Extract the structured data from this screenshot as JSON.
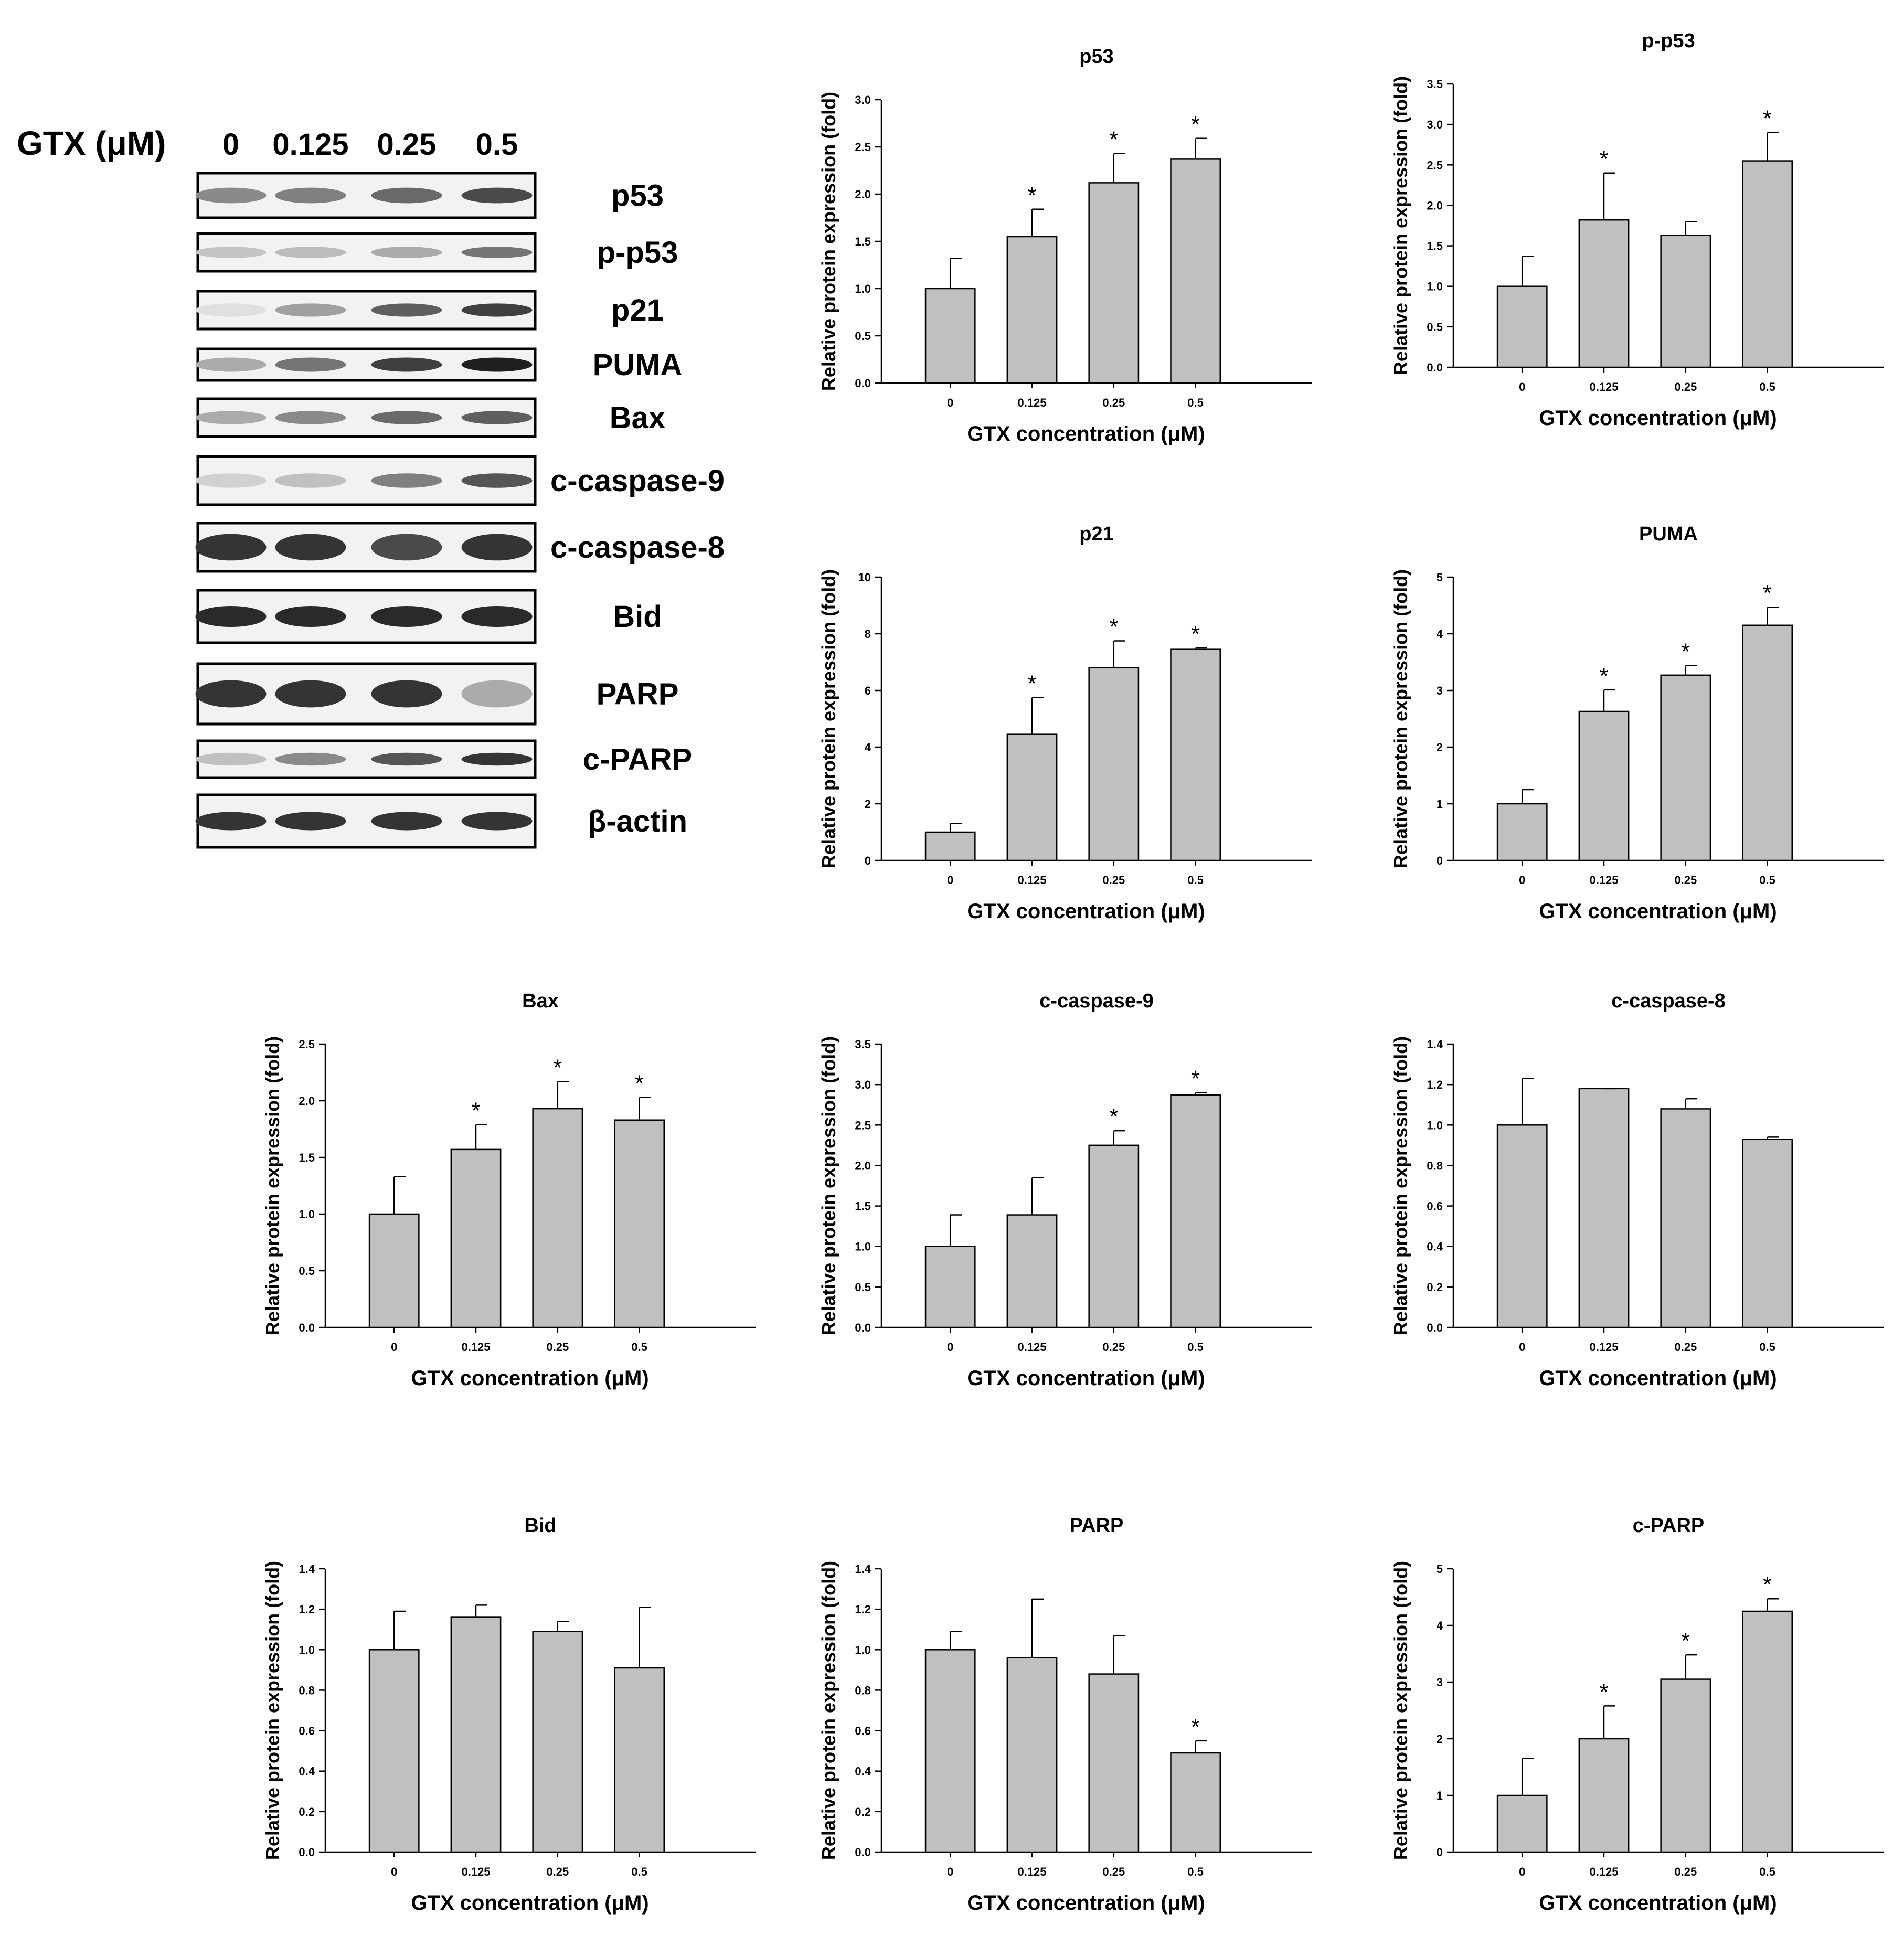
{
  "western_blot": {
    "treatment_label": "GTX (μM)",
    "lanes": [
      "0",
      "0.125",
      "0.25",
      "0.5"
    ],
    "bands": [
      "p53",
      "p-p53",
      "p21",
      "PUMA",
      "Bax",
      "c-caspase-9",
      "c-caspase-8",
      "Bid",
      "PARP",
      "c-PARP",
      "β-actin"
    ]
  },
  "chart_data": [
    {
      "type": "bar",
      "title": "p53",
      "xlabel": "GTX concentration (μM)",
      "ylabel": "Relative protein expression (fold)",
      "categories": [
        "0",
        "0.125",
        "0.25",
        "0.5"
      ],
      "values": [
        1.0,
        1.55,
        2.12,
        2.37
      ],
      "errors": [
        0.32,
        0.29,
        0.31,
        0.22
      ],
      "significant": [
        false,
        true,
        true,
        true
      ],
      "ylim": [
        0,
        3.0
      ],
      "yticks": [
        "0.0",
        "0.5",
        "1.0",
        "1.5",
        "2.0",
        "2.5",
        "3.0"
      ]
    },
    {
      "type": "bar",
      "title": "p-p53",
      "xlabel": "GTX concentration (μM)",
      "ylabel": "Relative protein expression (fold)",
      "categories": [
        "0",
        "0.125",
        "0.25",
        "0.5"
      ],
      "values": [
        1.0,
        1.82,
        1.63,
        2.55
      ],
      "errors": [
        0.37,
        0.58,
        0.17,
        0.35
      ],
      "significant": [
        false,
        true,
        false,
        true
      ],
      "ylim": [
        0,
        3.5
      ],
      "yticks": [
        "0.0",
        "0.5",
        "1.0",
        "1.5",
        "2.0",
        "2.5",
        "3.0",
        "3.5"
      ]
    },
    {
      "type": "bar",
      "title": "p21",
      "xlabel": "GTX concentration (μM)",
      "ylabel": "Relative protein expression (fold)",
      "categories": [
        "0",
        "0.125",
        "0.25",
        "0.5"
      ],
      "values": [
        1.0,
        4.45,
        6.8,
        7.45
      ],
      "errors": [
        0.3,
        1.3,
        0.95,
        0.05
      ],
      "significant": [
        false,
        true,
        true,
        true
      ],
      "ylim": [
        0,
        10
      ],
      "yticks": [
        "0",
        "2",
        "4",
        "6",
        "8",
        "10"
      ]
    },
    {
      "type": "bar",
      "title": "PUMA",
      "xlabel": "GTX concentration (μM)",
      "ylabel": "Relative protein expression (fold)",
      "categories": [
        "0",
        "0.125",
        "0.25",
        "0.5"
      ],
      "values": [
        1.0,
        2.63,
        3.27,
        4.15
      ],
      "errors": [
        0.25,
        0.38,
        0.17,
        0.32
      ],
      "significant": [
        false,
        true,
        true,
        true
      ],
      "ylim": [
        0,
        5
      ],
      "yticks": [
        "0",
        "1",
        "2",
        "3",
        "4",
        "5"
      ]
    },
    {
      "type": "bar",
      "title": "Bax",
      "xlabel": "GTX concentration (μM)",
      "ylabel": "Relative protein expression (fold)",
      "categories": [
        "0",
        "0.125",
        "0.25",
        "0.5"
      ],
      "values": [
        1.0,
        1.57,
        1.93,
        1.83
      ],
      "errors": [
        0.33,
        0.22,
        0.24,
        0.2
      ],
      "significant": [
        false,
        true,
        true,
        true
      ],
      "ylim": [
        0,
        2.5
      ],
      "yticks": [
        "0.0",
        "0.5",
        "1.0",
        "1.5",
        "2.0",
        "2.5"
      ]
    },
    {
      "type": "bar",
      "title": "c-caspase-9",
      "xlabel": "GTX concentration (μM)",
      "ylabel": "Relative protein expression (fold)",
      "categories": [
        "0",
        "0.125",
        "0.25",
        "0.5"
      ],
      "values": [
        1.0,
        1.39,
        2.25,
        2.87
      ],
      "errors": [
        0.39,
        0.46,
        0.18,
        0.03
      ],
      "significant": [
        false,
        false,
        true,
        true
      ],
      "ylim": [
        0,
        3.5
      ],
      "yticks": [
        "0.0",
        "0.5",
        "1.0",
        "1.5",
        "2.0",
        "2.5",
        "3.0",
        "3.5"
      ]
    },
    {
      "type": "bar",
      "title": "c-caspase-8",
      "xlabel": "GTX concentration (μM)",
      "ylabel": "Relative protein expression (fold)",
      "categories": [
        "0",
        "0.125",
        "0.25",
        "0.5"
      ],
      "values": [
        1.0,
        1.18,
        1.08,
        0.93
      ],
      "errors": [
        0.23,
        0.0,
        0.05,
        0.01
      ],
      "significant": [
        false,
        false,
        false,
        false
      ],
      "ylim": [
        0,
        1.4
      ],
      "yticks": [
        "0.0",
        "0.2",
        "0.4",
        "0.6",
        "0.8",
        "1.0",
        "1.2",
        "1.4"
      ]
    },
    {
      "type": "bar",
      "title": "Bid",
      "xlabel": "GTX concentration (μM)",
      "ylabel": "Relative protein expression (fold)",
      "categories": [
        "0",
        "0.125",
        "0.25",
        "0.5"
      ],
      "values": [
        1.0,
        1.16,
        1.09,
        0.91
      ],
      "errors": [
        0.19,
        0.06,
        0.05,
        0.3
      ],
      "significant": [
        false,
        false,
        false,
        false
      ],
      "ylim": [
        0,
        1.4
      ],
      "yticks": [
        "0.0",
        "0.2",
        "0.4",
        "0.6",
        "0.8",
        "1.0",
        "1.2",
        "1.4"
      ]
    },
    {
      "type": "bar",
      "title": "PARP",
      "xlabel": "GTX concentration (μM)",
      "ylabel": "Relative protein expression (fold)",
      "categories": [
        "0",
        "0.125",
        "0.25",
        "0.5"
      ],
      "values": [
        1.0,
        0.96,
        0.88,
        0.49
      ],
      "errors": [
        0.09,
        0.29,
        0.19,
        0.06
      ],
      "significant": [
        false,
        false,
        false,
        true
      ],
      "ylim": [
        0,
        1.4
      ],
      "yticks": [
        "0.0",
        "0.2",
        "0.4",
        "0.6",
        "0.8",
        "1.0",
        "1.2",
        "1.4"
      ]
    },
    {
      "type": "bar",
      "title": "c-PARP",
      "xlabel": "GTX concentration (μM)",
      "ylabel": "Relative protein expression (fold)",
      "categories": [
        "0",
        "0.125",
        "0.25",
        "0.5"
      ],
      "values": [
        1.0,
        2.0,
        3.05,
        4.25
      ],
      "errors": [
        0.65,
        0.58,
        0.43,
        0.22
      ],
      "significant": [
        false,
        true,
        true,
        true
      ],
      "ylim": [
        0,
        5
      ],
      "yticks": [
        "0",
        "1",
        "2",
        "3",
        "4",
        "5"
      ]
    }
  ]
}
